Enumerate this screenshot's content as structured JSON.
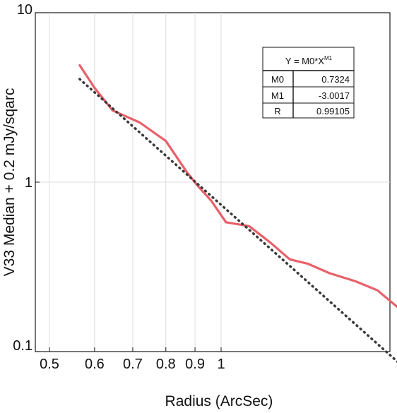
{
  "chart_data": {
    "type": "line",
    "xlabel": "Radius (ArcSec)",
    "ylabel": "V33 Median + 0.2 mJy/sqarc",
    "xscale": "log",
    "yscale": "log",
    "xlim": [
      0.5,
      2.8
    ],
    "ylim": [
      0.1,
      10
    ],
    "grid": true,
    "x_ticks": [
      0.5,
      0.6,
      0.7,
      0.8,
      0.9,
      1
    ],
    "x_tick_labels": [
      "0.5",
      "0.6",
      "0.7",
      "0.8",
      "0.9",
      "1"
    ],
    "y_ticks": [
      0.1,
      1,
      10
    ],
    "y_tick_labels": [
      "0.1",
      "1",
      "10"
    ],
    "series": [
      {
        "color": "#e8606a",
        "style": "solid",
        "x": [
          0.565,
          0.6,
          0.645,
          0.72,
          0.8,
          0.87,
          0.91,
          0.96,
          1.02,
          1.12,
          1.22,
          1.32,
          1.42,
          1.55,
          1.72,
          1.88,
          2.05,
          2.3,
          2.6
        ],
        "values": [
          4.9,
          3.6,
          2.65,
          2.25,
          1.75,
          1.15,
          0.95,
          0.78,
          0.58,
          0.55,
          0.44,
          0.35,
          0.33,
          0.29,
          0.26,
          0.23,
          0.18,
          0.19,
          0.17
        ]
      },
      {
        "color": "#3a3a3a",
        "style": "dotted",
        "x": [
          0.565,
          2.62
        ],
        "values": [
          4.06,
          0.0411
        ]
      }
    ],
    "fit_table": {
      "header": "Y = M0*X",
      "header_sup": "M1",
      "rows": [
        {
          "label": "M0",
          "value": "0.7324"
        },
        {
          "label": "M1",
          "value": "-3.0017"
        },
        {
          "label": "R",
          "value": "0.99105"
        }
      ]
    }
  }
}
